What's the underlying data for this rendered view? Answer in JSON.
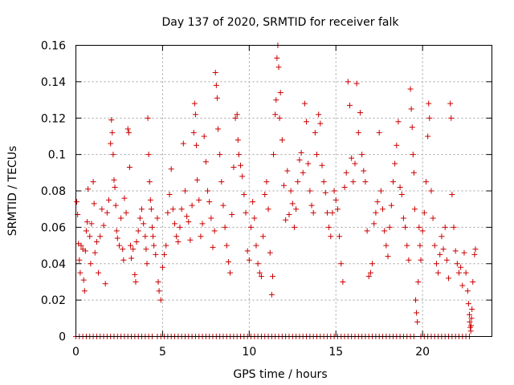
{
  "chart_data": {
    "type": "scatter",
    "title": "Day 137 of 2020, SRMTID for receiver falk",
    "xlabel": "GPS time / hours",
    "ylabel": "SRMTID / TECUs",
    "xlim": [
      0,
      24
    ],
    "ylim": [
      0,
      0.16
    ],
    "xticks": [
      0,
      5,
      10,
      15,
      20
    ],
    "xtick_labels": [
      "0",
      "5",
      "10",
      "15",
      "20"
    ],
    "yticks": [
      0,
      0.02,
      0.04,
      0.06,
      0.08,
      0.1,
      0.12,
      0.14,
      0.16
    ],
    "ytick_labels": [
      "0",
      "0.02",
      "0.04",
      "0.06",
      "0.08",
      "0.1",
      "0.12",
      "0.14",
      "0.16"
    ],
    "grid": true,
    "marker": "plus",
    "color": "#cc0000",
    "series": [
      {
        "name": "SRMTID",
        "points": [
          [
            0.05,
            0.074
          ],
          [
            0.1,
            0.067
          ],
          [
            0.15,
            0.051
          ],
          [
            0.2,
            0.042
          ],
          [
            0.25,
            0.035
          ],
          [
            0.3,
            0.05
          ],
          [
            0.4,
            0.048
          ],
          [
            0.45,
            0.031
          ],
          [
            0.5,
            0.025
          ],
          [
            0.55,
            0.047
          ],
          [
            0.6,
            0.058
          ],
          [
            0.65,
            0.063
          ],
          [
            0.7,
            0.081
          ],
          [
            0.8,
            0.055
          ],
          [
            0.85,
            0.04
          ],
          [
            0.9,
            0.062
          ],
          [
            1.0,
            0.085
          ],
          [
            1.05,
            0.073
          ],
          [
            1.1,
            0.046
          ],
          [
            1.2,
            0.052
          ],
          [
            1.3,
            0.035
          ],
          [
            1.4,
            0.055
          ],
          [
            1.5,
            0.07
          ],
          [
            1.6,
            0.061
          ],
          [
            1.7,
            0.029
          ],
          [
            1.8,
            0.068
          ],
          [
            1.9,
            0.075
          ],
          [
            2.0,
            0.106
          ],
          [
            2.05,
            0.119
          ],
          [
            2.1,
            0.112
          ],
          [
            2.15,
            0.1
          ],
          [
            2.2,
            0.086
          ],
          [
            2.25,
            0.082
          ],
          [
            2.3,
            0.072
          ],
          [
            2.35,
            0.058
          ],
          [
            2.4,
            0.054
          ],
          [
            2.5,
            0.05
          ],
          [
            2.6,
            0.065
          ],
          [
            2.7,
            0.048
          ],
          [
            2.75,
            0.042
          ],
          [
            2.8,
            0.076
          ],
          [
            2.9,
            0.068
          ],
          [
            3.0,
            0.114
          ],
          [
            3.05,
            0.112
          ],
          [
            3.1,
            0.093
          ],
          [
            3.15,
            0.05
          ],
          [
            3.2,
            0.043
          ],
          [
            3.3,
            0.048
          ],
          [
            3.4,
            0.034
          ],
          [
            3.45,
            0.03
          ],
          [
            3.5,
            0.052
          ],
          [
            3.6,
            0.058
          ],
          [
            3.7,
            0.065
          ],
          [
            3.8,
            0.07
          ],
          [
            3.9,
            0.062
          ],
          [
            4.0,
            0.055
          ],
          [
            4.05,
            0.048
          ],
          [
            4.1,
            0.04
          ],
          [
            4.15,
            0.12
          ],
          [
            4.2,
            0.1
          ],
          [
            4.25,
            0.085
          ],
          [
            4.3,
            0.075
          ],
          [
            4.35,
            0.07
          ],
          [
            4.4,
            0.06
          ],
          [
            4.45,
            0.055
          ],
          [
            4.5,
            0.05
          ],
          [
            4.6,
            0.045
          ],
          [
            4.7,
            0.065
          ],
          [
            4.75,
            0.03
          ],
          [
            4.8,
            0.025
          ],
          [
            4.9,
            0.02
          ],
          [
            5.0,
            0.038
          ],
          [
            5.1,
            0.045
          ],
          [
            5.2,
            0.05
          ],
          [
            5.3,
            0.068
          ],
          [
            5.4,
            0.078
          ],
          [
            5.5,
            0.092
          ],
          [
            5.6,
            0.07
          ],
          [
            5.7,
            0.062
          ],
          [
            5.8,
            0.055
          ],
          [
            5.9,
            0.052
          ],
          [
            6.0,
            0.06
          ],
          [
            6.1,
            0.07
          ],
          [
            6.2,
            0.106
          ],
          [
            6.3,
            0.08
          ],
          [
            6.4,
            0.066
          ],
          [
            6.5,
            0.063
          ],
          [
            6.6,
            0.053
          ],
          [
            6.7,
            0.072
          ],
          [
            6.8,
            0.112
          ],
          [
            6.85,
            0.128
          ],
          [
            6.9,
            0.122
          ],
          [
            6.95,
            0.105
          ],
          [
            7.0,
            0.086
          ],
          [
            7.1,
            0.075
          ],
          [
            7.2,
            0.055
          ],
          [
            7.3,
            0.062
          ],
          [
            7.4,
            0.11
          ],
          [
            7.5,
            0.096
          ],
          [
            7.6,
            0.08
          ],
          [
            7.7,
            0.074
          ],
          [
            7.8,
            0.065
          ],
          [
            7.9,
            0.049
          ],
          [
            8.0,
            0.058
          ],
          [
            8.05,
            0.145
          ],
          [
            8.1,
            0.138
          ],
          [
            8.15,
            0.131
          ],
          [
            8.2,
            0.114
          ],
          [
            8.3,
            0.1
          ],
          [
            8.4,
            0.085
          ],
          [
            8.5,
            0.072
          ],
          [
            8.6,
            0.06
          ],
          [
            8.7,
            0.05
          ],
          [
            8.8,
            0.041
          ],
          [
            8.9,
            0.035
          ],
          [
            9.0,
            0.067
          ],
          [
            9.1,
            0.093
          ],
          [
            9.2,
            0.12
          ],
          [
            9.3,
            0.122
          ],
          [
            9.35,
            0.108
          ],
          [
            9.4,
            0.1
          ],
          [
            9.5,
            0.094
          ],
          [
            9.6,
            0.088
          ],
          [
            9.7,
            0.078
          ],
          [
            9.8,
            0.068
          ],
          [
            9.9,
            0.047
          ],
          [
            10.0,
            0.042
          ],
          [
            10.1,
            0.06
          ],
          [
            10.2,
            0.074
          ],
          [
            10.3,
            0.065
          ],
          [
            10.4,
            0.05
          ],
          [
            10.5,
            0.04
          ],
          [
            10.6,
            0.035
          ],
          [
            10.7,
            0.033
          ],
          [
            10.8,
            0.055
          ],
          [
            10.9,
            0.078
          ],
          [
            11.0,
            0.085
          ],
          [
            11.1,
            0.07
          ],
          [
            11.2,
            0.046
          ],
          [
            11.3,
            0.023
          ],
          [
            11.35,
            0.033
          ],
          [
            11.4,
            0.1
          ],
          [
            11.5,
            0.122
          ],
          [
            11.55,
            0.13
          ],
          [
            11.6,
            0.153
          ],
          [
            11.65,
            0.16
          ],
          [
            11.7,
            0.148
          ],
          [
            11.75,
            0.12
          ],
          [
            11.8,
            0.134
          ],
          [
            11.9,
            0.108
          ],
          [
            12.0,
            0.083
          ],
          [
            12.1,
            0.064
          ],
          [
            12.2,
            0.091
          ],
          [
            12.3,
            0.067
          ],
          [
            12.4,
            0.08
          ],
          [
            12.5,
            0.073
          ],
          [
            12.6,
            0.06
          ],
          [
            12.7,
            0.07
          ],
          [
            12.8,
            0.085
          ],
          [
            12.9,
            0.097
          ],
          [
            13.0,
            0.101
          ],
          [
            13.1,
            0.09
          ],
          [
            13.2,
            0.128
          ],
          [
            13.3,
            0.118
          ],
          [
            13.4,
            0.095
          ],
          [
            13.5,
            0.08
          ],
          [
            13.6,
            0.072
          ],
          [
            13.7,
            0.068
          ],
          [
            13.8,
            0.112
          ],
          [
            13.9,
            0.1
          ],
          [
            14.0,
            0.122
          ],
          [
            14.1,
            0.117
          ],
          [
            14.2,
            0.094
          ],
          [
            14.3,
            0.085
          ],
          [
            14.4,
            0.079
          ],
          [
            14.5,
            0.068
          ],
          [
            14.6,
            0.06
          ],
          [
            14.7,
            0.055
          ],
          [
            14.8,
            0.068
          ],
          [
            14.9,
            0.08
          ],
          [
            15.0,
            0.075
          ],
          [
            15.1,
            0.07
          ],
          [
            15.2,
            0.055
          ],
          [
            15.3,
            0.04
          ],
          [
            15.4,
            0.03
          ],
          [
            15.5,
            0.082
          ],
          [
            15.6,
            0.09
          ],
          [
            15.7,
            0.14
          ],
          [
            15.8,
            0.127
          ],
          [
            15.9,
            0.098
          ],
          [
            16.0,
            0.085
          ],
          [
            16.1,
            0.095
          ],
          [
            16.2,
            0.139
          ],
          [
            16.3,
            0.112
          ],
          [
            16.4,
            0.123
          ],
          [
            16.5,
            0.1
          ],
          [
            16.6,
            0.091
          ],
          [
            16.7,
            0.085
          ],
          [
            16.8,
            0.058
          ],
          [
            16.9,
            0.033
          ],
          [
            17.0,
            0.035
          ],
          [
            17.1,
            0.04
          ],
          [
            17.2,
            0.062
          ],
          [
            17.3,
            0.068
          ],
          [
            17.4,
            0.074
          ],
          [
            17.5,
            0.112
          ],
          [
            17.6,
            0.08
          ],
          [
            17.7,
            0.07
          ],
          [
            17.8,
            0.058
          ],
          [
            17.9,
            0.05
          ],
          [
            18.0,
            0.044
          ],
          [
            18.1,
            0.06
          ],
          [
            18.2,
            0.072
          ],
          [
            18.3,
            0.085
          ],
          [
            18.4,
            0.095
          ],
          [
            18.5,
            0.105
          ],
          [
            18.6,
            0.118
          ],
          [
            18.7,
            0.082
          ],
          [
            18.8,
            0.078
          ],
          [
            18.9,
            0.065
          ],
          [
            19.0,
            0.06
          ],
          [
            19.1,
            0.05
          ],
          [
            19.2,
            0.042
          ],
          [
            19.3,
            0.136
          ],
          [
            19.35,
            0.125
          ],
          [
            19.4,
            0.115
          ],
          [
            19.45,
            0.1
          ],
          [
            19.5,
            0.09
          ],
          [
            19.55,
            0.07
          ],
          [
            19.6,
            0.02
          ],
          [
            19.65,
            0.013
          ],
          [
            19.7,
            0.008
          ],
          [
            19.75,
            0.03
          ],
          [
            19.8,
            0.06
          ],
          [
            19.85,
            0.05
          ],
          [
            19.9,
            0.042
          ],
          [
            20.0,
            0.058
          ],
          [
            20.1,
            0.068
          ],
          [
            20.2,
            0.085
          ],
          [
            20.3,
            0.11
          ],
          [
            20.35,
            0.128
          ],
          [
            20.4,
            0.12
          ],
          [
            20.5,
            0.08
          ],
          [
            20.6,
            0.065
          ],
          [
            20.7,
            0.05
          ],
          [
            20.8,
            0.04
          ],
          [
            20.9,
            0.035
          ],
          [
            21.0,
            0.045
          ],
          [
            21.1,
            0.055
          ],
          [
            21.2,
            0.048
          ],
          [
            21.3,
            0.06
          ],
          [
            21.4,
            0.042
          ],
          [
            21.5,
            0.032
          ],
          [
            21.6,
            0.128
          ],
          [
            21.65,
            0.12
          ],
          [
            21.7,
            0.078
          ],
          [
            21.8,
            0.06
          ],
          [
            21.9,
            0.047
          ],
          [
            22.0,
            0.04
          ],
          [
            22.1,
            0.035
          ],
          [
            22.2,
            0.038
          ],
          [
            22.3,
            0.028
          ],
          [
            22.4,
            0.046
          ],
          [
            22.5,
            0.035
          ],
          [
            22.6,
            0.025
          ],
          [
            22.65,
            0.018
          ],
          [
            22.7,
            0.012
          ],
          [
            22.72,
            0.008
          ],
          [
            22.75,
            0.005
          ],
          [
            22.78,
            0.003
          ],
          [
            22.8,
            0.006
          ],
          [
            22.82,
            0.01
          ],
          [
            22.85,
            0.015
          ],
          [
            22.9,
            0.03
          ],
          [
            23.0,
            0.045
          ],
          [
            23.05,
            0.048
          ]
        ]
      }
    ],
    "zero_points_x": [
      0.0,
      0.2,
      0.4,
      0.6,
      0.8,
      1.0,
      1.2,
      1.4,
      1.6,
      1.8,
      2.0,
      2.2,
      2.4,
      2.6,
      2.8,
      3.0,
      3.2,
      3.4,
      3.6,
      3.8,
      4.0,
      4.2,
      4.4,
      4.7,
      4.9,
      5.1,
      5.3,
      5.5,
      5.7,
      5.9,
      6.1,
      6.3,
      6.5,
      6.7,
      6.9,
      7.1,
      7.3,
      7.5,
      7.7,
      7.9,
      8.1,
      8.3,
      8.5,
      8.7,
      8.9,
      9.1,
      9.3,
      9.5,
      9.7,
      9.9,
      10.1,
      10.3,
      10.5,
      10.7,
      10.9,
      11.1,
      11.3,
      11.5,
      11.7,
      11.9,
      12.1,
      12.3,
      12.5,
      12.7,
      12.9,
      13.1,
      13.3,
      13.5,
      13.7,
      13.9,
      14.1,
      14.3,
      14.5,
      14.7,
      14.9,
      15.1,
      15.3,
      15.5,
      15.7,
      15.9,
      16.1,
      16.3,
      16.5,
      16.7,
      16.9,
      17.1,
      17.3,
      17.5,
      17.7,
      17.9,
      18.1,
      18.3,
      18.5,
      18.7,
      18.9,
      19.1,
      19.3,
      19.5,
      19.9,
      20.1,
      20.3,
      20.5,
      20.7,
      20.9,
      21.1,
      21.3,
      21.5,
      21.7,
      21.9,
      22.1,
      22.3,
      22.5,
      22.7
    ]
  }
}
